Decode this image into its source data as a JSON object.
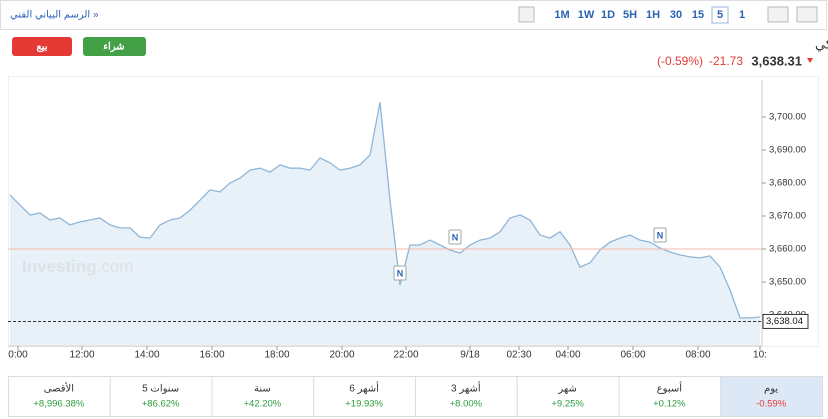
{
  "toolbar": {
    "link": "الرسم البياني الفني »",
    "timeframes": [
      "1M",
      "1W",
      "1D",
      "5H",
      "1H",
      "30",
      "15",
      "5",
      "1"
    ],
    "selected_timeframe": 7
  },
  "actions": {
    "sell": "بيع",
    "buy": "شراء"
  },
  "header": {
    "title": "XAU/USD - العقود الفورية للذهب دولار أمريكي",
    "price": "3,638.31",
    "change": "-21.73",
    "change_pct": "(-0.59%)"
  },
  "chart_data": {
    "type": "area",
    "color": "#8fb6d9",
    "fill": "#e3edf6",
    "values": [
      3676.4,
      3673.3,
      3670.3,
      3670.9,
      3668.8,
      3669.4,
      3667.3,
      3668.2,
      3668.8,
      3669.4,
      3667.3,
      3666.4,
      3666.4,
      3663.6,
      3663.3,
      3667.3,
      3668.8,
      3669.4,
      3671.8,
      3674.8,
      3677.9,
      3677.3,
      3680.0,
      3681.5,
      3683.9,
      3684.5,
      3683.3,
      3685.5,
      3684.5,
      3684.5,
      3683.9,
      3687.6,
      3686.1,
      3683.9,
      3684.5,
      3685.5,
      3688.5,
      3704.5,
      3674.8,
      3649.1,
      3661.2,
      3661.2,
      3662.7,
      3661.2,
      3659.7,
      3658.8,
      3661.2,
      3662.7,
      3663.3,
      3665.2,
      3669.4,
      3670.3,
      3668.8,
      3664.2,
      3663.3,
      3665.2,
      3661.2,
      3654.5,
      3655.8,
      3659.7,
      3662.1,
      3663.3,
      3664.2,
      3662.7,
      3662.1,
      3660.3,
      3659.1,
      3658.2,
      3657.6,
      3657.3,
      3657.9,
      3654.5,
      3647.6,
      3639.1,
      3639.1,
      3639.4
    ],
    "ylim": [
      3630.9,
      3708.8
    ],
    "yticks": [
      {
        "value": 3640,
        "label": "3,640.00"
      },
      {
        "value": 3650,
        "label": "3,650.00"
      },
      {
        "value": 3660,
        "label": "3,660.00"
      },
      {
        "value": 3670,
        "label": "3,670.00"
      },
      {
        "value": 3680,
        "label": "3,680.00"
      },
      {
        "value": 3690,
        "label": "3,690.00"
      },
      {
        "value": 3700,
        "label": "3,700.00"
      }
    ],
    "x_labels": [
      "0:00",
      "12:00",
      "14:00",
      "16:00",
      "18:00",
      "20:00",
      "22:00",
      "9/18",
      "02:30",
      "04:00",
      "06:00",
      "08:00",
      "10:"
    ],
    "reference_line": 3660,
    "last_price": {
      "value": 3638.04,
      "label": "3,638.04"
    },
    "annotations": [
      "N",
      "N",
      "N"
    ],
    "watermark": [
      "Investing",
      ".com"
    ]
  },
  "performance": [
    [
      "الأقصى",
      "+8,996.38%"
    ],
    [
      "5 سنوات",
      "+86.62%"
    ],
    [
      "سنة",
      "+42.20%"
    ],
    [
      "6 أشهر",
      "+19.93%"
    ],
    [
      "3 أشهر",
      "+8.00%"
    ],
    [
      "شهر",
      "+9.25%"
    ],
    [
      "أسبوع",
      "+0.12%"
    ],
    [
      "يوم",
      "-0.59%"
    ]
  ]
}
